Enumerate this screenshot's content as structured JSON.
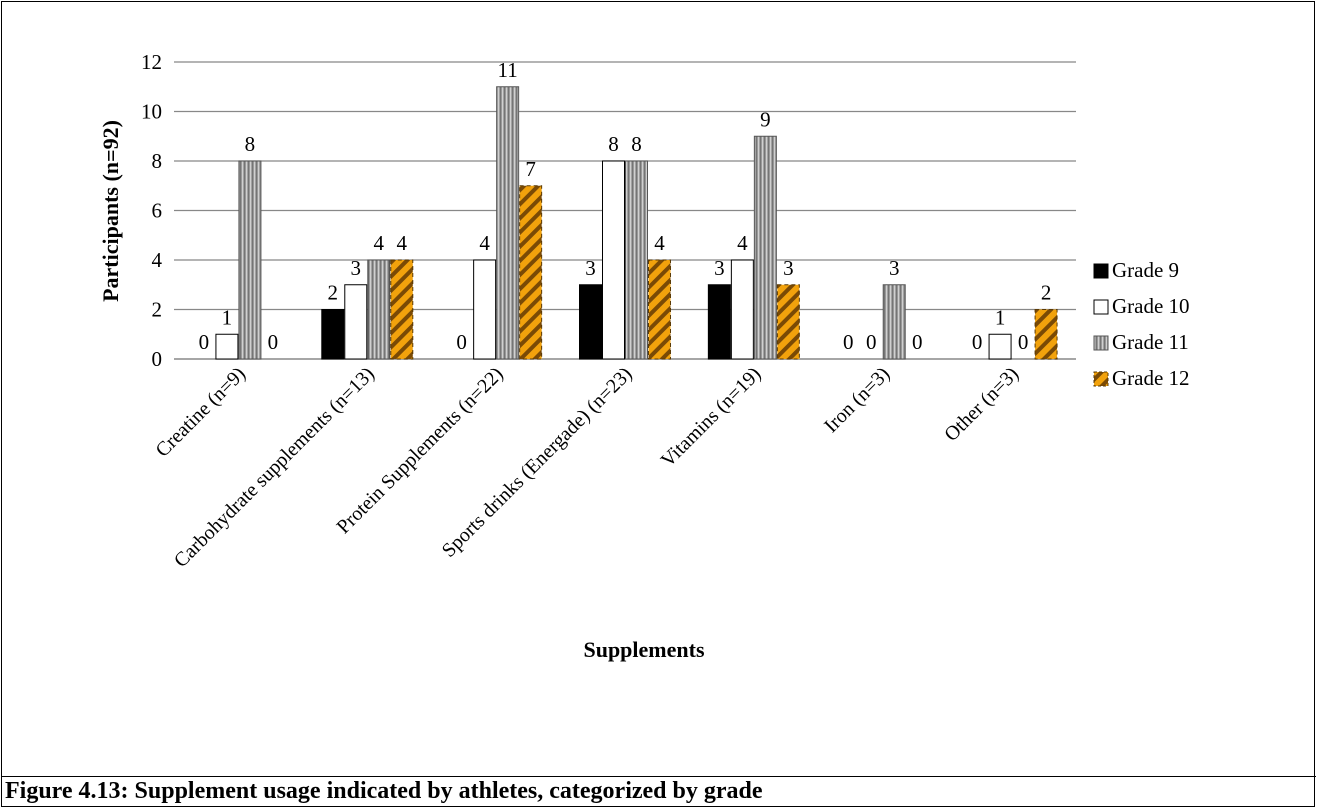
{
  "chart_data": {
    "type": "bar",
    "xlabel": "Supplements",
    "ylabel": "Participants (n=92)",
    "ylim": [
      0,
      12
    ],
    "yticks": [
      0,
      2,
      4,
      6,
      8,
      10,
      12
    ],
    "grid": true,
    "legend_position": "right",
    "categories": [
      "Creatine (n=9)",
      "Carbohydrate supplements (n=13)",
      "Protein Supplements (n=22)",
      "Sports drinks (Energade) (n=23)",
      "Vitamins (n=19)",
      "Iron (n=3)",
      "Other (n=3)"
    ],
    "series": [
      {
        "name": "Grade 9",
        "values": [
          0,
          2,
          0,
          3,
          3,
          0,
          0
        ],
        "style": "solid-black"
      },
      {
        "name": "Grade 10",
        "values": [
          1,
          3,
          4,
          8,
          4,
          0,
          1
        ],
        "style": "white"
      },
      {
        "name": "Grade 11",
        "values": [
          8,
          4,
          11,
          8,
          9,
          3,
          0
        ],
        "style": "vertical-stripes-gray"
      },
      {
        "name": "Grade 12",
        "values": [
          0,
          4,
          7,
          4,
          3,
          0,
          2
        ],
        "style": "diagonal-stripes-orange"
      }
    ]
  },
  "caption": "Figure 4.13: Supplement usage indicated by athletes, categorized by grade"
}
